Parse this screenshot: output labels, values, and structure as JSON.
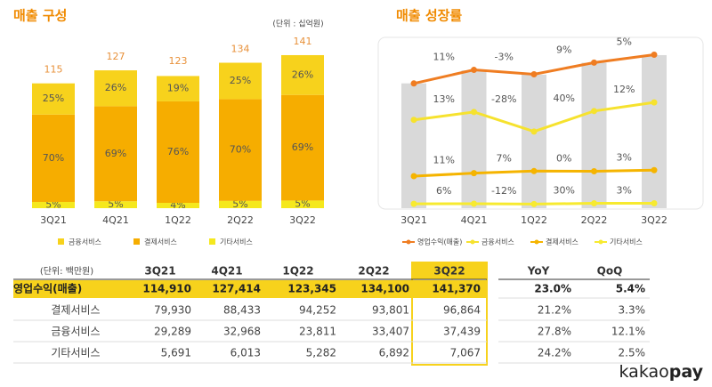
{
  "chart_data": [
    {
      "type": "bar",
      "title": "매출 구성",
      "note": "(단위 : 십억원)",
      "categories": [
        "3Q21",
        "4Q21",
        "1Q22",
        "2Q22",
        "3Q22"
      ],
      "totals": [
        115,
        127,
        123,
        134,
        141
      ],
      "series": [
        {
          "name": "금융서비스",
          "color": "#f7d21c",
          "values": [
            25,
            26,
            19,
            25,
            26
          ],
          "value_labels": [
            "25%",
            "26%",
            "19%",
            "25%",
            "26%"
          ]
        },
        {
          "name": "결제서비스",
          "color": "#f6ad00",
          "values": [
            70,
            69,
            76,
            70,
            69
          ],
          "value_labels": [
            "70%",
            "69%",
            "76%",
            "70%",
            "69%"
          ]
        },
        {
          "name": "기타서비스",
          "color": "#f5e81e",
          "values": [
            5,
            5,
            4,
            5,
            5
          ],
          "value_labels": [
            "5%",
            "5%",
            "4%",
            "5%",
            "5%"
          ]
        }
      ]
    },
    {
      "type": "line",
      "title": "매출 성장률",
      "categories": [
        "3Q21",
        "4Q21",
        "1Q22",
        "2Q22",
        "3Q22"
      ],
      "series": [
        {
          "name": "영업수익(매출)",
          "color": "#ef7d22",
          "values": [
            null,
            11,
            -3,
            9,
            5
          ],
          "value_labels": [
            null,
            "11%",
            "-3%",
            "9%",
            "5%"
          ]
        },
        {
          "name": "금융서비스",
          "color": "#f6e22e",
          "values": [
            null,
            13,
            -28,
            40,
            12
          ],
          "value_labels": [
            null,
            "13%",
            "-28%",
            "40%",
            "12%"
          ]
        },
        {
          "name": "결제서비스",
          "color": "#f5b400",
          "values": [
            null,
            11,
            7,
            0,
            3
          ],
          "value_labels": [
            null,
            "11%",
            "7%",
            "0%",
            "3%"
          ]
        },
        {
          "name": "기타서비스",
          "color": "#f7ea30",
          "values": [
            null,
            6,
            -12,
            30,
            3
          ],
          "value_labels": [
            null,
            "6%",
            "-12%",
            "30%",
            "3%"
          ]
        }
      ]
    }
  ],
  "table": {
    "header": [
      "(단위: 백만원)",
      "3Q21",
      "4Q21",
      "1Q22",
      "2Q22",
      "3Q22",
      "YoY",
      "QoQ"
    ],
    "rows": [
      [
        "영업수익(매출)",
        "114,910",
        "127,414",
        "123,345",
        "134,100",
        "141,370",
        "23.0%",
        "5.4%"
      ],
      [
        "결제서비스",
        "79,930",
        "88,433",
        "94,252",
        "93,801",
        "96,864",
        "21.2%",
        "3.3%"
      ],
      [
        "금융서비스",
        "29,289",
        "32,968",
        "23,811",
        "33,407",
        "37,439",
        "27.8%",
        "12.1%"
      ],
      [
        "기타서비스",
        "5,691",
        "6,013",
        "5,282",
        "6,892",
        "7,067",
        "24.2%",
        "2.5%"
      ]
    ]
  },
  "brand": {
    "name": "kakao",
    "suffix": "pay"
  }
}
